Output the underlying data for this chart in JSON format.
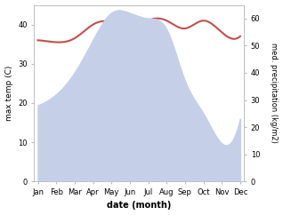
{
  "months": [
    "Jan",
    "Feb",
    "Mar",
    "Apr",
    "May",
    "Jun",
    "Jul",
    "Aug",
    "Sep",
    "Oct",
    "Nov",
    "Dec"
  ],
  "temperature": [
    36,
    35.5,
    36.5,
    40,
    40.5,
    38.5,
    41,
    41,
    39,
    41,
    38,
    37
  ],
  "precipitation": [
    28,
    32,
    40,
    52,
    62,
    62,
    60,
    56,
    37,
    25,
    14,
    23
  ],
  "temp_color": "#c0504d",
  "precip_fill_color": "#c5d0e8",
  "xlabel": "date (month)",
  "ylabel_left": "max temp (C)",
  "ylabel_right": "med. precipitation (kg/m2)",
  "ylim_left": [
    0,
    45
  ],
  "ylim_right": [
    0,
    65
  ],
  "yticks_left": [
    0,
    10,
    20,
    30,
    40
  ],
  "yticks_right": [
    0,
    10,
    20,
    30,
    40,
    50,
    60
  ],
  "figsize": [
    3.18,
    2.42
  ],
  "dpi": 100,
  "bg_color": "#ffffff"
}
